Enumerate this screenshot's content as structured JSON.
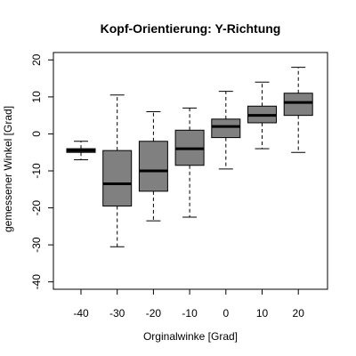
{
  "chart_data": {
    "type": "box",
    "title": "Kopf-Orientierung: Y-Richtung",
    "xlabel": "Orginalwinke [Grad]",
    "ylabel": "gemessener Winkel [Grad]",
    "ylim": [
      -42,
      22
    ],
    "yticks": [
      20,
      10,
      0,
      -10,
      -20,
      -30,
      -40
    ],
    "categories": [
      "-40",
      "-30",
      "-20",
      "-10",
      "0",
      "10",
      "20"
    ],
    "boxes": [
      {
        "category": "-40",
        "whisker_low": -7,
        "q1": -5,
        "median": -4.5,
        "q3": -4,
        "whisker_high": -2
      },
      {
        "category": "-30",
        "whisker_low": -30.5,
        "q1": -19.5,
        "median": -13.5,
        "q3": -4.5,
        "whisker_high": 10.5
      },
      {
        "category": "-20",
        "whisker_low": -23.5,
        "q1": -15.5,
        "median": -10,
        "q3": -2,
        "whisker_high": 6
      },
      {
        "category": "-10",
        "whisker_low": -22.5,
        "q1": -8.5,
        "median": -4,
        "q3": 1,
        "whisker_high": 7
      },
      {
        "category": "0",
        "whisker_low": -9.5,
        "q1": -1,
        "median": 2,
        "q3": 4,
        "whisker_high": 11.5
      },
      {
        "category": "10",
        "whisker_low": -4,
        "q1": 3,
        "median": 5,
        "q3": 7.5,
        "whisker_high": 14
      },
      {
        "category": "20",
        "whisker_low": -5,
        "q1": 5,
        "median": 8.5,
        "q3": 11,
        "whisker_high": 18
      }
    ],
    "box_color": "#808080",
    "grid": false
  }
}
